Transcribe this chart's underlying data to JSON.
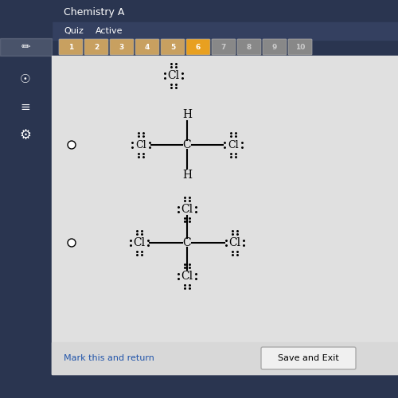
{
  "bg_color": "#d9d9d9",
  "content_bg": "#e8e8e8",
  "title_bar_color": "#3a4a6b",
  "quiz_bar_color": "#2a3a5a",
  "nav_buttons": [
    "1",
    "2",
    "3",
    "4",
    "5",
    "6",
    "7",
    "8",
    "9",
    "10"
  ],
  "active_button": 5,
  "active_color": "#e8a020",
  "inactive_color": "#c8a060",
  "dim_color": "#555555",
  "text_color": "#111111",
  "link_color": "#2255aa",
  "mark_return_text": "Mark this and return",
  "save_exit_text": "Save and Exit",
  "title_text": "Chemistry A",
  "quiz_label": "Quiz",
  "active_label": "Active"
}
